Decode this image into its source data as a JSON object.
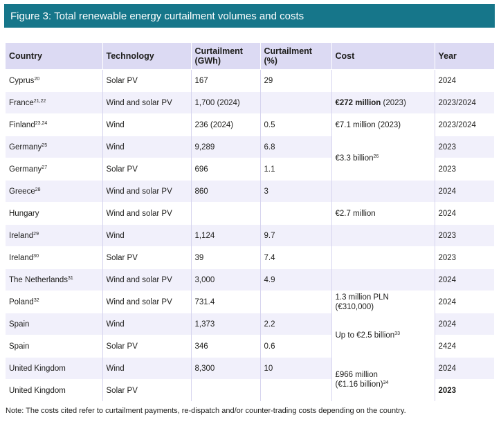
{
  "figure_title": "Figure 3: Total renewable energy curtailment volumes and costs",
  "headers": {
    "country": "Country",
    "technology": "Technology",
    "curt_gwh_1": "Curtailment",
    "curt_gwh_2": "(GWh)",
    "curt_pct_1": "Curtailment",
    "curt_pct_2": "(%)",
    "cost": "Cost",
    "year": "Year"
  },
  "rows": [
    {
      "country": "Cyprus",
      "sup": "20",
      "technology": "Solar PV",
      "gwh": "167",
      "pct": "29",
      "year": "2024"
    },
    {
      "country": "France",
      "sup": "21,22",
      "technology": "Wind and solar PV",
      "gwh": "1,700 (2024)",
      "pct": "",
      "year": "2023/2024"
    },
    {
      "country": "Finland",
      "sup": "23,24",
      "technology": "Wind",
      "gwh": "236 (2024)",
      "pct": "0.5",
      "year": "2023/2024"
    },
    {
      "country": "Germany",
      "sup": "25",
      "technology": "Wind",
      "gwh": "9,289",
      "pct": "6.8",
      "year": "2023"
    },
    {
      "country": "Germany",
      "sup": "27",
      "technology": "Solar PV",
      "gwh": "696",
      "pct": "1.1",
      "year": "2023"
    },
    {
      "country": "Greece",
      "sup": "28",
      "technology": "Wind and solar PV",
      "gwh": "860",
      "pct": "3",
      "year": "2024"
    },
    {
      "country": "Hungary",
      "sup": "",
      "technology": "Wind and solar PV",
      "gwh": "",
      "pct": "",
      "year": "2024"
    },
    {
      "country": "Ireland",
      "sup": "29",
      "technology": "Wind",
      "gwh": "1,124",
      "pct": "9.7",
      "year": "2023"
    },
    {
      "country": "Ireland",
      "sup": "30",
      "technology": "Solar PV",
      "gwh": "39",
      "pct": "7.4",
      "year": "2023"
    },
    {
      "country": "The Netherlands",
      "sup": "31",
      "technology": "Wind and solar PV",
      "gwh": "3,000",
      "pct": "4.9",
      "year": "2024"
    },
    {
      "country": "Poland",
      "sup": "32",
      "technology": "Wind and solar PV",
      "gwh": "731.4",
      "pct": "",
      "year": "2024"
    },
    {
      "country": "Spain",
      "sup": "",
      "technology": "Wind",
      "gwh": "1,373",
      "pct": "2.2",
      "year": "2024"
    },
    {
      "country": "Spain",
      "sup": "",
      "technology": "Solar PV",
      "gwh": "346",
      "pct": "0.6",
      "year": "2424"
    },
    {
      "country": "United Kingdom",
      "sup": "",
      "technology": "Wind",
      "gwh": "8,300",
      "pct": "10",
      "year": "2024"
    },
    {
      "country": "United Kingdom",
      "sup": "",
      "technology": "Solar PV",
      "gwh": "",
      "pct": "",
      "year": "2023"
    }
  ],
  "costs": {
    "france_bold": "€272 million",
    "france_rest": " (2023)",
    "finland": "€7.1 million (2023)",
    "germany": "€3.3 billion",
    "germany_sup": "26",
    "hungary": "€2.7 million",
    "poland_1": "1.3 million PLN",
    "poland_2": "(€310,000)",
    "spain": "Up to €2.5 billion",
    "spain_sup": "33",
    "uk_1": "£966 million",
    "uk_2": "(€1.16 billion)",
    "uk_sup": "34"
  },
  "note": "Note: The costs cited refer to curtailment payments, re-dispatch and/or counter-trading costs depending on the country."
}
